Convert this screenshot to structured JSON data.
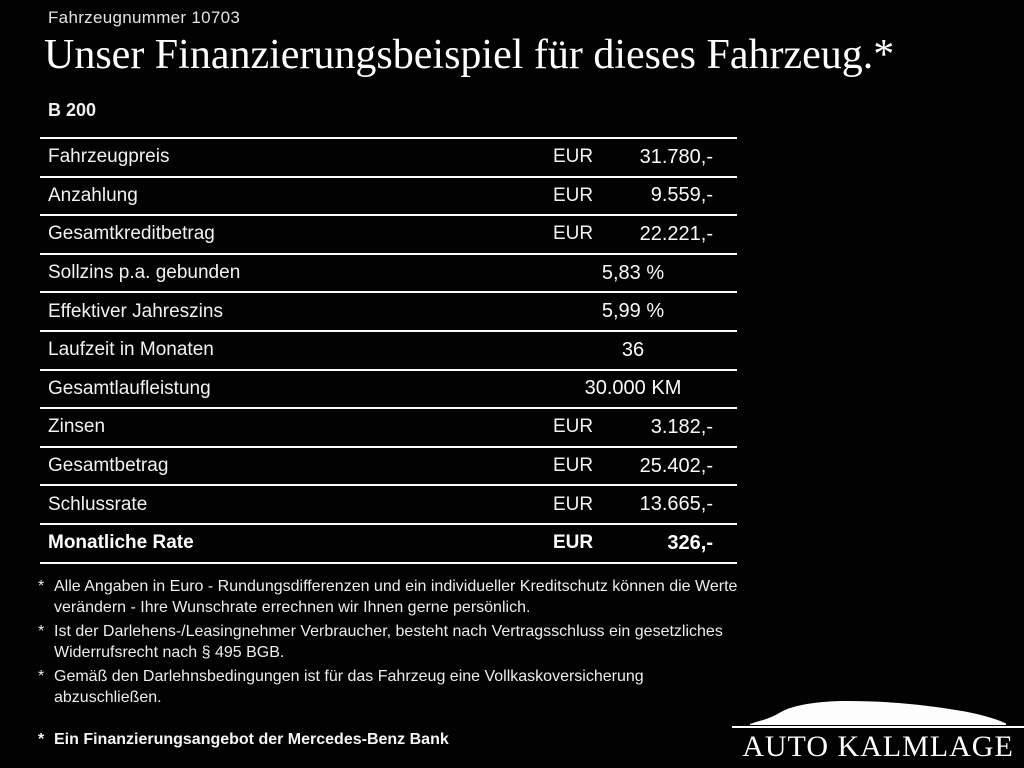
{
  "header": {
    "vehicle_number": "Fahrzeugnummer 10703",
    "title": "Unser Finanzierungsbeispiel für dieses Fahrzeug.*",
    "model": "B 200"
  },
  "table": {
    "rows": [
      {
        "label": "Fahrzeugpreis",
        "currency": "EUR",
        "value": "31.780,-",
        "bold": false
      },
      {
        "label": "Anzahlung",
        "currency": "EUR",
        "value": "9.559,-",
        "bold": false
      },
      {
        "label": "Gesamtkreditbetrag",
        "currency": "EUR",
        "value": "22.221,-",
        "bold": false
      },
      {
        "label": "Sollzins p.a. gebunden",
        "currency": "",
        "value": "5,83 %",
        "bold": false
      },
      {
        "label": "Effektiver Jahreszins",
        "currency": "",
        "value": "5,99 %",
        "bold": false
      },
      {
        "label": "Laufzeit in Monaten",
        "currency": "",
        "value": "36",
        "bold": false
      },
      {
        "label": "Gesamtlaufleistung",
        "currency": "",
        "value": "30.000 KM",
        "bold": false
      },
      {
        "label": "Zinsen",
        "currency": "EUR",
        "value": "3.182,-",
        "bold": false
      },
      {
        "label": "Gesamtbetrag",
        "currency": "EUR",
        "value": "25.402,-",
        "bold": false
      },
      {
        "label": "Schlussrate",
        "currency": "EUR",
        "value": "13.665,-",
        "bold": false
      },
      {
        "label": "Monatliche Rate",
        "currency": "EUR",
        "value": "326,-",
        "bold": true
      }
    ]
  },
  "footnotes": [
    {
      "marker": "*",
      "text": "Alle Angaben in Euro - Rundungsdifferenzen und ein individueller Kreditschutz können die Werte verändern - Ihre Wunschrate errechnen wir Ihnen gerne persönlich."
    },
    {
      "marker": "*",
      "text": "Ist der Darlehens-/Leasingnehmer Verbraucher, besteht nach Vertragsschluss ein gesetzliches Widerrufsrecht nach § 495 BGB."
    },
    {
      "marker": "*",
      "text": "Gemäß den Darlehnsbedingungen ist für das Fahrzeug eine Vollkaskoversicherung abzuschließen."
    }
  ],
  "bank_note": {
    "marker": "*",
    "text": "Ein Finanzierungsangebot der Mercedes-Benz Bank"
  },
  "dealer": {
    "name": "AUTO KALMLAGE",
    "logo_icon": "car-silhouette-icon"
  },
  "colors": {
    "background": "#020202",
    "text": "#f4f4f4",
    "divider": "#fcfcfc"
  }
}
